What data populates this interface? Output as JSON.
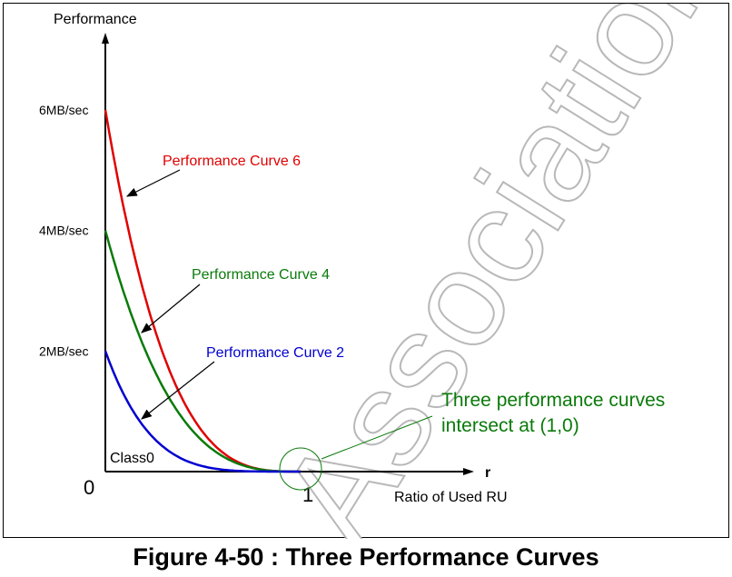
{
  "caption": "Figure 4-50 : Three Performance Curves",
  "watermark": "Association",
  "chart_data": {
    "type": "line",
    "ylabel": "Performance",
    "xlabel": "r",
    "x_axis_description": "Ratio of Used RU",
    "origin_label": "0",
    "x_tick_label": "1",
    "y_ticks": [
      {
        "value": 2,
        "label": "2MB/sec"
      },
      {
        "value": 4,
        "label": "4MB/sec"
      },
      {
        "value": 6,
        "label": "6MB/sec"
      }
    ],
    "xlim": [
      0,
      2.1
    ],
    "ylim": [
      0,
      8
    ],
    "series": [
      {
        "name": "Performance Curve 6",
        "color": "#e00000",
        "peak": 6,
        "exponent": 3.2
      },
      {
        "name": "Performance Curve 4",
        "color": "#0a7a0a",
        "peak": 4,
        "exponent": 3.0
      },
      {
        "name": "Performance Curve 2",
        "color": "#0000d0",
        "peak": 2,
        "exponent": 4.5
      }
    ],
    "region_label": "Class0",
    "annotation": {
      "line1": "Three performance curves",
      "line2": "intersect at (1,0)",
      "color": "#0a7a0a",
      "point": [
        1,
        0
      ]
    }
  }
}
